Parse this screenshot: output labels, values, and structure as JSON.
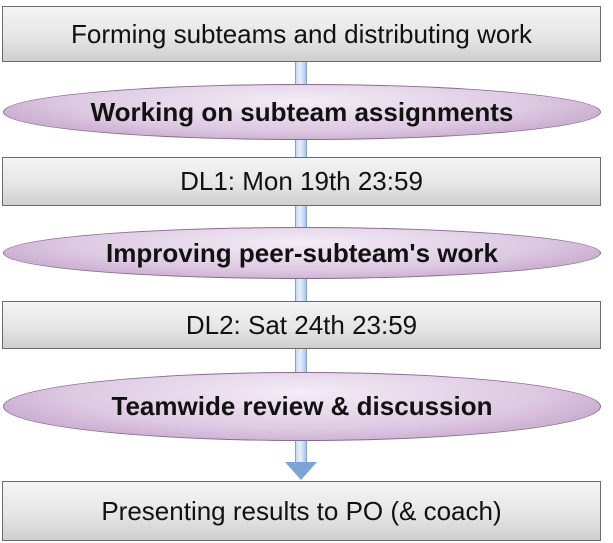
{
  "flow": {
    "stages": [
      {
        "kind": "box",
        "label": "Forming subteams and distributing work"
      },
      {
        "kind": "ellipse",
        "label": "Working on subteam assignments"
      },
      {
        "kind": "box",
        "label": "DL1: Mon 19th 23:59"
      },
      {
        "kind": "ellipse",
        "label": "Improving peer-subteam's work"
      },
      {
        "kind": "box",
        "label": "DL2: Sat 24th 23:59"
      },
      {
        "kind": "ellipse",
        "label": "Teamwide review & discussion"
      },
      {
        "kind": "box",
        "label": "Presenting results to PO (& coach)"
      }
    ]
  },
  "colors": {
    "box_fill": "#e6e6e6",
    "box_border": "#6b6b6b",
    "ellipse_fill": "#ddc9e2",
    "ellipse_border": "#8a6a90",
    "connector": "#a9c6ea",
    "arrow": "#7ea3d6"
  }
}
